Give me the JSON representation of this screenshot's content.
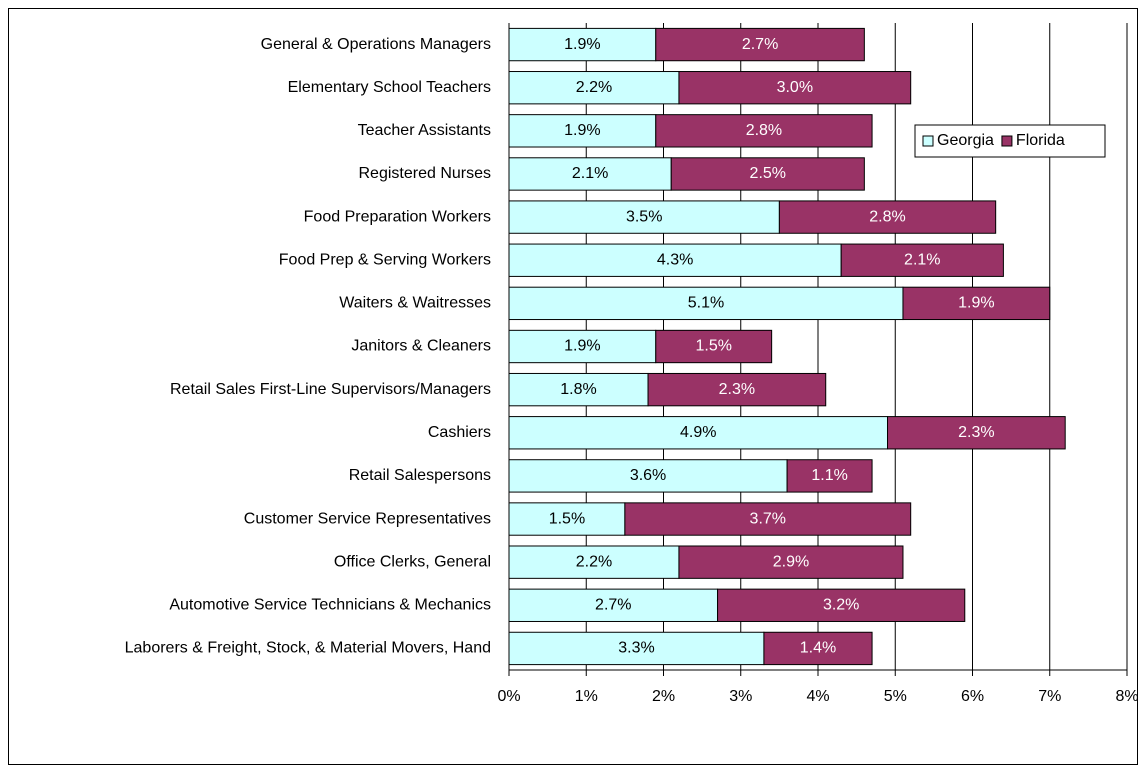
{
  "chart_data": {
    "type": "stacked_bar_horizontal",
    "categories": [
      "General & Operations Managers",
      "Elementary School Teachers",
      "Teacher Assistants",
      "Registered Nurses",
      "Food Preparation Workers",
      "Food Prep & Serving Workers",
      "Waiters & Waitresses",
      "Janitors & Cleaners",
      "Retail Sales First-Line Supervisors/Managers",
      "Cashiers",
      "Retail Salespersons",
      "Customer Service Representatives",
      "Office Clerks, General",
      "Automotive Service Technicians & Mechanics",
      "Laborers & Freight, Stock, & Material Movers, Hand"
    ],
    "series": [
      {
        "name": "Georgia",
        "color": "#ccffff",
        "values": [
          1.9,
          2.2,
          1.9,
          2.1,
          3.5,
          4.3,
          5.1,
          1.9,
          1.8,
          4.9,
          3.6,
          1.5,
          2.2,
          2.7,
          3.3
        ],
        "value_labels": [
          "1.9%",
          "2.2%",
          "1.9%",
          "2.1%",
          "3.5%",
          "4.3%",
          "5.1%",
          "1.9%",
          "1.8%",
          "4.9%",
          "3.6%",
          "1.5%",
          "2.2%",
          "2.7%",
          "3.3%"
        ]
      },
      {
        "name": "Florida",
        "color": "#993366",
        "values": [
          2.7,
          3.0,
          2.8,
          2.5,
          2.8,
          2.1,
          1.9,
          1.5,
          2.3,
          2.3,
          1.1,
          3.7,
          2.9,
          3.2,
          1.4
        ],
        "value_labels": [
          "2.7%",
          "3.0%",
          "2.8%",
          "2.5%",
          "2.8%",
          "2.1%",
          "1.9%",
          "1.5%",
          "2.3%",
          "2.3%",
          "1.1%",
          "3.7%",
          "2.9%",
          "3.2%",
          "1.4%"
        ]
      }
    ],
    "xlim": [
      0,
      8
    ],
    "xticks": [
      {
        "value": 0,
        "label": "0%"
      },
      {
        "value": 1,
        "label": "1%"
      },
      {
        "value": 2,
        "label": "2%"
      },
      {
        "value": 3,
        "label": "3%"
      },
      {
        "value": 4,
        "label": "4%"
      },
      {
        "value": 5,
        "label": "5%"
      },
      {
        "value": 6,
        "label": "6%"
      },
      {
        "value": 7,
        "label": "7%"
      },
      {
        "value": 8,
        "label": "8%"
      }
    ],
    "grid": true,
    "legend": "upper right"
  }
}
